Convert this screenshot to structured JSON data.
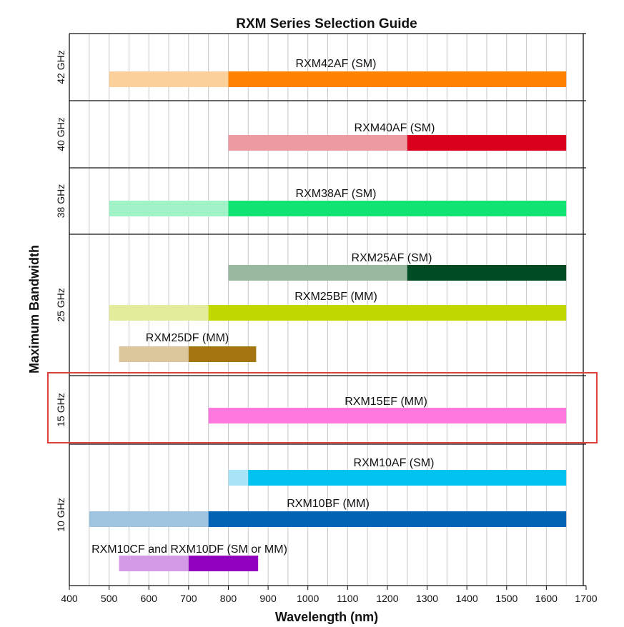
{
  "chart_data": {
    "type": "bar",
    "orientation": "horizontal-range",
    "title": "RXM Series Selection Guide",
    "xlabel": "Wavelength (nm)",
    "ylabel": "Maximum Bandwidth",
    "xlim": [
      400,
      1700
    ],
    "xticks": [
      400,
      500,
      600,
      700,
      800,
      900,
      1000,
      1100,
      1200,
      1300,
      1400,
      1500,
      1600,
      1700
    ],
    "grid": true,
    "highlight_band": "15 GHz",
    "highlight_color": "#e0403a",
    "bands": [
      {
        "label": "42 GHz",
        "rows": 1
      },
      {
        "label": "40 GHz",
        "rows": 1
      },
      {
        "label": "38 GHz",
        "rows": 1
      },
      {
        "label": "25 GHz",
        "rows": 3
      },
      {
        "label": "15 GHz",
        "rows": 1
      },
      {
        "label": "10 GHz",
        "rows": 3
      }
    ],
    "series": [
      {
        "name": "RXM42AF (SM)",
        "band": 0,
        "row": 0,
        "light": [
          500,
          800
        ],
        "full": [
          800,
          1650
        ],
        "light_color": "#fcd09a",
        "color": "#ff8200"
      },
      {
        "name": "RXM40AF (SM)",
        "band": 1,
        "row": 0,
        "light": [
          800,
          1250
        ],
        "full": [
          1250,
          1650
        ],
        "light_color": "#ee9aa2",
        "color": "#d8001c"
      },
      {
        "name": "RXM38AF (SM)",
        "band": 2,
        "row": 0,
        "light": [
          500,
          800
        ],
        "full": [
          800,
          1650
        ],
        "light_color": "#a2f2c7",
        "color": "#12e474"
      },
      {
        "name": "RXM25AF (SM)",
        "band": 3,
        "row": 0,
        "light": [
          800,
          1250
        ],
        "full": [
          1250,
          1650
        ],
        "light_color": "#98b8a0",
        "color": "#004b22"
      },
      {
        "name": "RXM25BF (MM)",
        "band": 3,
        "row": 1,
        "light": [
          500,
          750
        ],
        "full": [
          750,
          1650
        ],
        "light_color": "#e2ec9a",
        "color": "#c0d800"
      },
      {
        "name": "RXM25DF (MM)",
        "band": 3,
        "row": 2,
        "light": [
          525,
          700
        ],
        "full": [
          700,
          870
        ],
        "light_color": "#dcc79c",
        "color": "#a57610"
      },
      {
        "name": "RXM15EF (MM)",
        "band": 4,
        "row": 0,
        "light": null,
        "full": [
          750,
          1650
        ],
        "light_color": null,
        "color": "#ff78e0"
      },
      {
        "name": "RXM10AF (SM)",
        "band": 5,
        "row": 0,
        "light": [
          800,
          850
        ],
        "full": [
          850,
          1650
        ],
        "light_color": "#a6e4f6",
        "color": "#00c3ef"
      },
      {
        "name": "RXM10BF (MM)",
        "band": 5,
        "row": 1,
        "light": [
          450,
          750
        ],
        "full": [
          750,
          1650
        ],
        "light_color": "#9fc4e0",
        "color": "#0063b4"
      },
      {
        "name": "RXM10CF and RXM10DF (SM or MM)",
        "band": 5,
        "row": 2,
        "light": [
          525,
          700
        ],
        "full": [
          700,
          875
        ],
        "light_color": "#d39be6",
        "color": "#9200c0"
      }
    ]
  }
}
